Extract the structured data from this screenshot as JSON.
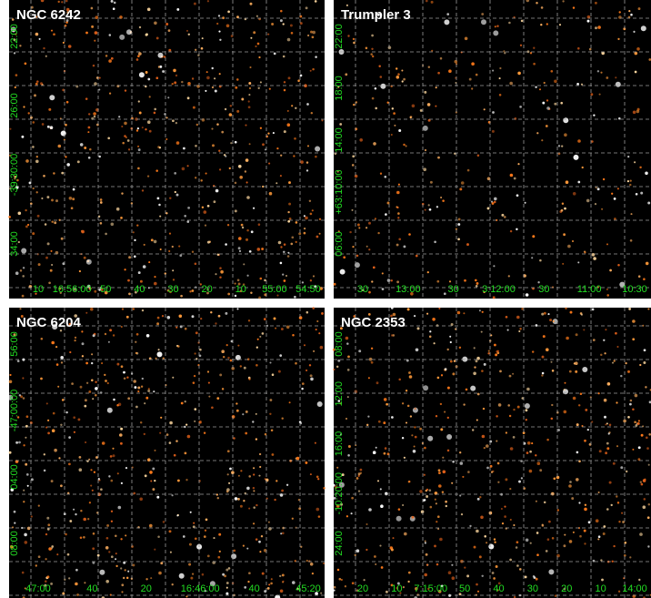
{
  "panels": [
    {
      "title": "NGC 6242",
      "x_labels": [
        "10",
        "16:56:00",
        "50",
        "40",
        "30",
        "20",
        "10",
        "55:00",
        "54:50"
      ],
      "y_labels": [
        "22:00",
        "26:00",
        "-39:30:00",
        "34:00"
      ]
    },
    {
      "title": "Trumpler 3",
      "x_labels": [
        "30",
        "13:00",
        "30",
        "3:12:00",
        "30",
        "11:00",
        "10:30"
      ],
      "y_labels": [
        "22:00",
        "18:00",
        "14:00",
        "+63:10:00",
        "06:00"
      ]
    },
    {
      "title": "NGC 6204",
      "x_labels": [
        "47:00",
        "40",
        "20",
        "16:46:00",
        "40",
        "45:20"
      ],
      "y_labels": [
        "56:00",
        "-47:00:00",
        "04:00",
        "08:00"
      ]
    },
    {
      "title": "NGC 2353",
      "x_labels": [
        "20",
        "10",
        "7:15:00",
        "50",
        "40",
        "30",
        "20",
        "10",
        "14:00"
      ],
      "y_labels": [
        "08:00",
        "12:00",
        "16:00",
        "-10:20:00",
        "24:00"
      ]
    }
  ]
}
